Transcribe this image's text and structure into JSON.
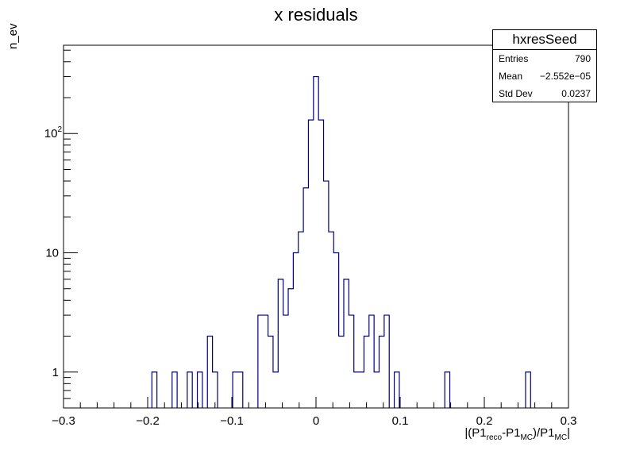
{
  "chart_data": {
    "type": "bar",
    "title": "x residuals",
    "ylabel": "n_ev",
    "xlabel_parts": [
      "|(P1",
      "reco",
      "-P1",
      "MC",
      ")/P1",
      "MC",
      "|"
    ],
    "xlim": [
      -0.3,
      0.3
    ],
    "ylim": [
      0.5,
      550
    ],
    "yscale": "log",
    "x_ticks": [
      "−0.3",
      "−0.2",
      "−0.1",
      "0",
      "0.1",
      "0.2",
      "0.3"
    ],
    "y_ticks": [
      "1",
      "10",
      "10^2"
    ],
    "bin_width": 0.006,
    "bins": [
      {
        "x": -0.192,
        "y": 1
      },
      {
        "x": -0.168,
        "y": 1
      },
      {
        "x": -0.15,
        "y": 1
      },
      {
        "x": -0.138,
        "y": 1
      },
      {
        "x": -0.126,
        "y": 2
      },
      {
        "x": -0.12,
        "y": 1
      },
      {
        "x": -0.096,
        "y": 1
      },
      {
        "x": -0.09,
        "y": 1
      },
      {
        "x": -0.066,
        "y": 3
      },
      {
        "x": -0.06,
        "y": 3
      },
      {
        "x": -0.054,
        "y": 2
      },
      {
        "x": -0.048,
        "y": 1
      },
      {
        "x": -0.042,
        "y": 6
      },
      {
        "x": -0.036,
        "y": 3
      },
      {
        "x": -0.03,
        "y": 5
      },
      {
        "x": -0.024,
        "y": 10
      },
      {
        "x": -0.018,
        "y": 15
      },
      {
        "x": -0.012,
        "y": 35
      },
      {
        "x": -0.006,
        "y": 130
      },
      {
        "x": 0.0,
        "y": 300
      },
      {
        "x": 0.006,
        "y": 130
      },
      {
        "x": 0.012,
        "y": 40
      },
      {
        "x": 0.018,
        "y": 15
      },
      {
        "x": 0.024,
        "y": 10
      },
      {
        "x": 0.03,
        "y": 2
      },
      {
        "x": 0.036,
        "y": 6
      },
      {
        "x": 0.042,
        "y": 3
      },
      {
        "x": 0.048,
        "y": 1
      },
      {
        "x": 0.054,
        "y": 1
      },
      {
        "x": 0.06,
        "y": 2
      },
      {
        "x": 0.066,
        "y": 3
      },
      {
        "x": 0.072,
        "y": 1
      },
      {
        "x": 0.078,
        "y": 2
      },
      {
        "x": 0.084,
        "y": 3
      },
      {
        "x": 0.096,
        "y": 1
      },
      {
        "x": 0.156,
        "y": 1
      },
      {
        "x": 0.252,
        "y": 1
      }
    ],
    "line_color": "#000080",
    "stats": {
      "name": "hxresSeed",
      "rows": [
        {
          "label": "Entries",
          "value": "790"
        },
        {
          "label": "Mean",
          "value": "−2.552e−05"
        },
        {
          "label": "Std Dev",
          "value": "0.0237"
        }
      ]
    }
  }
}
